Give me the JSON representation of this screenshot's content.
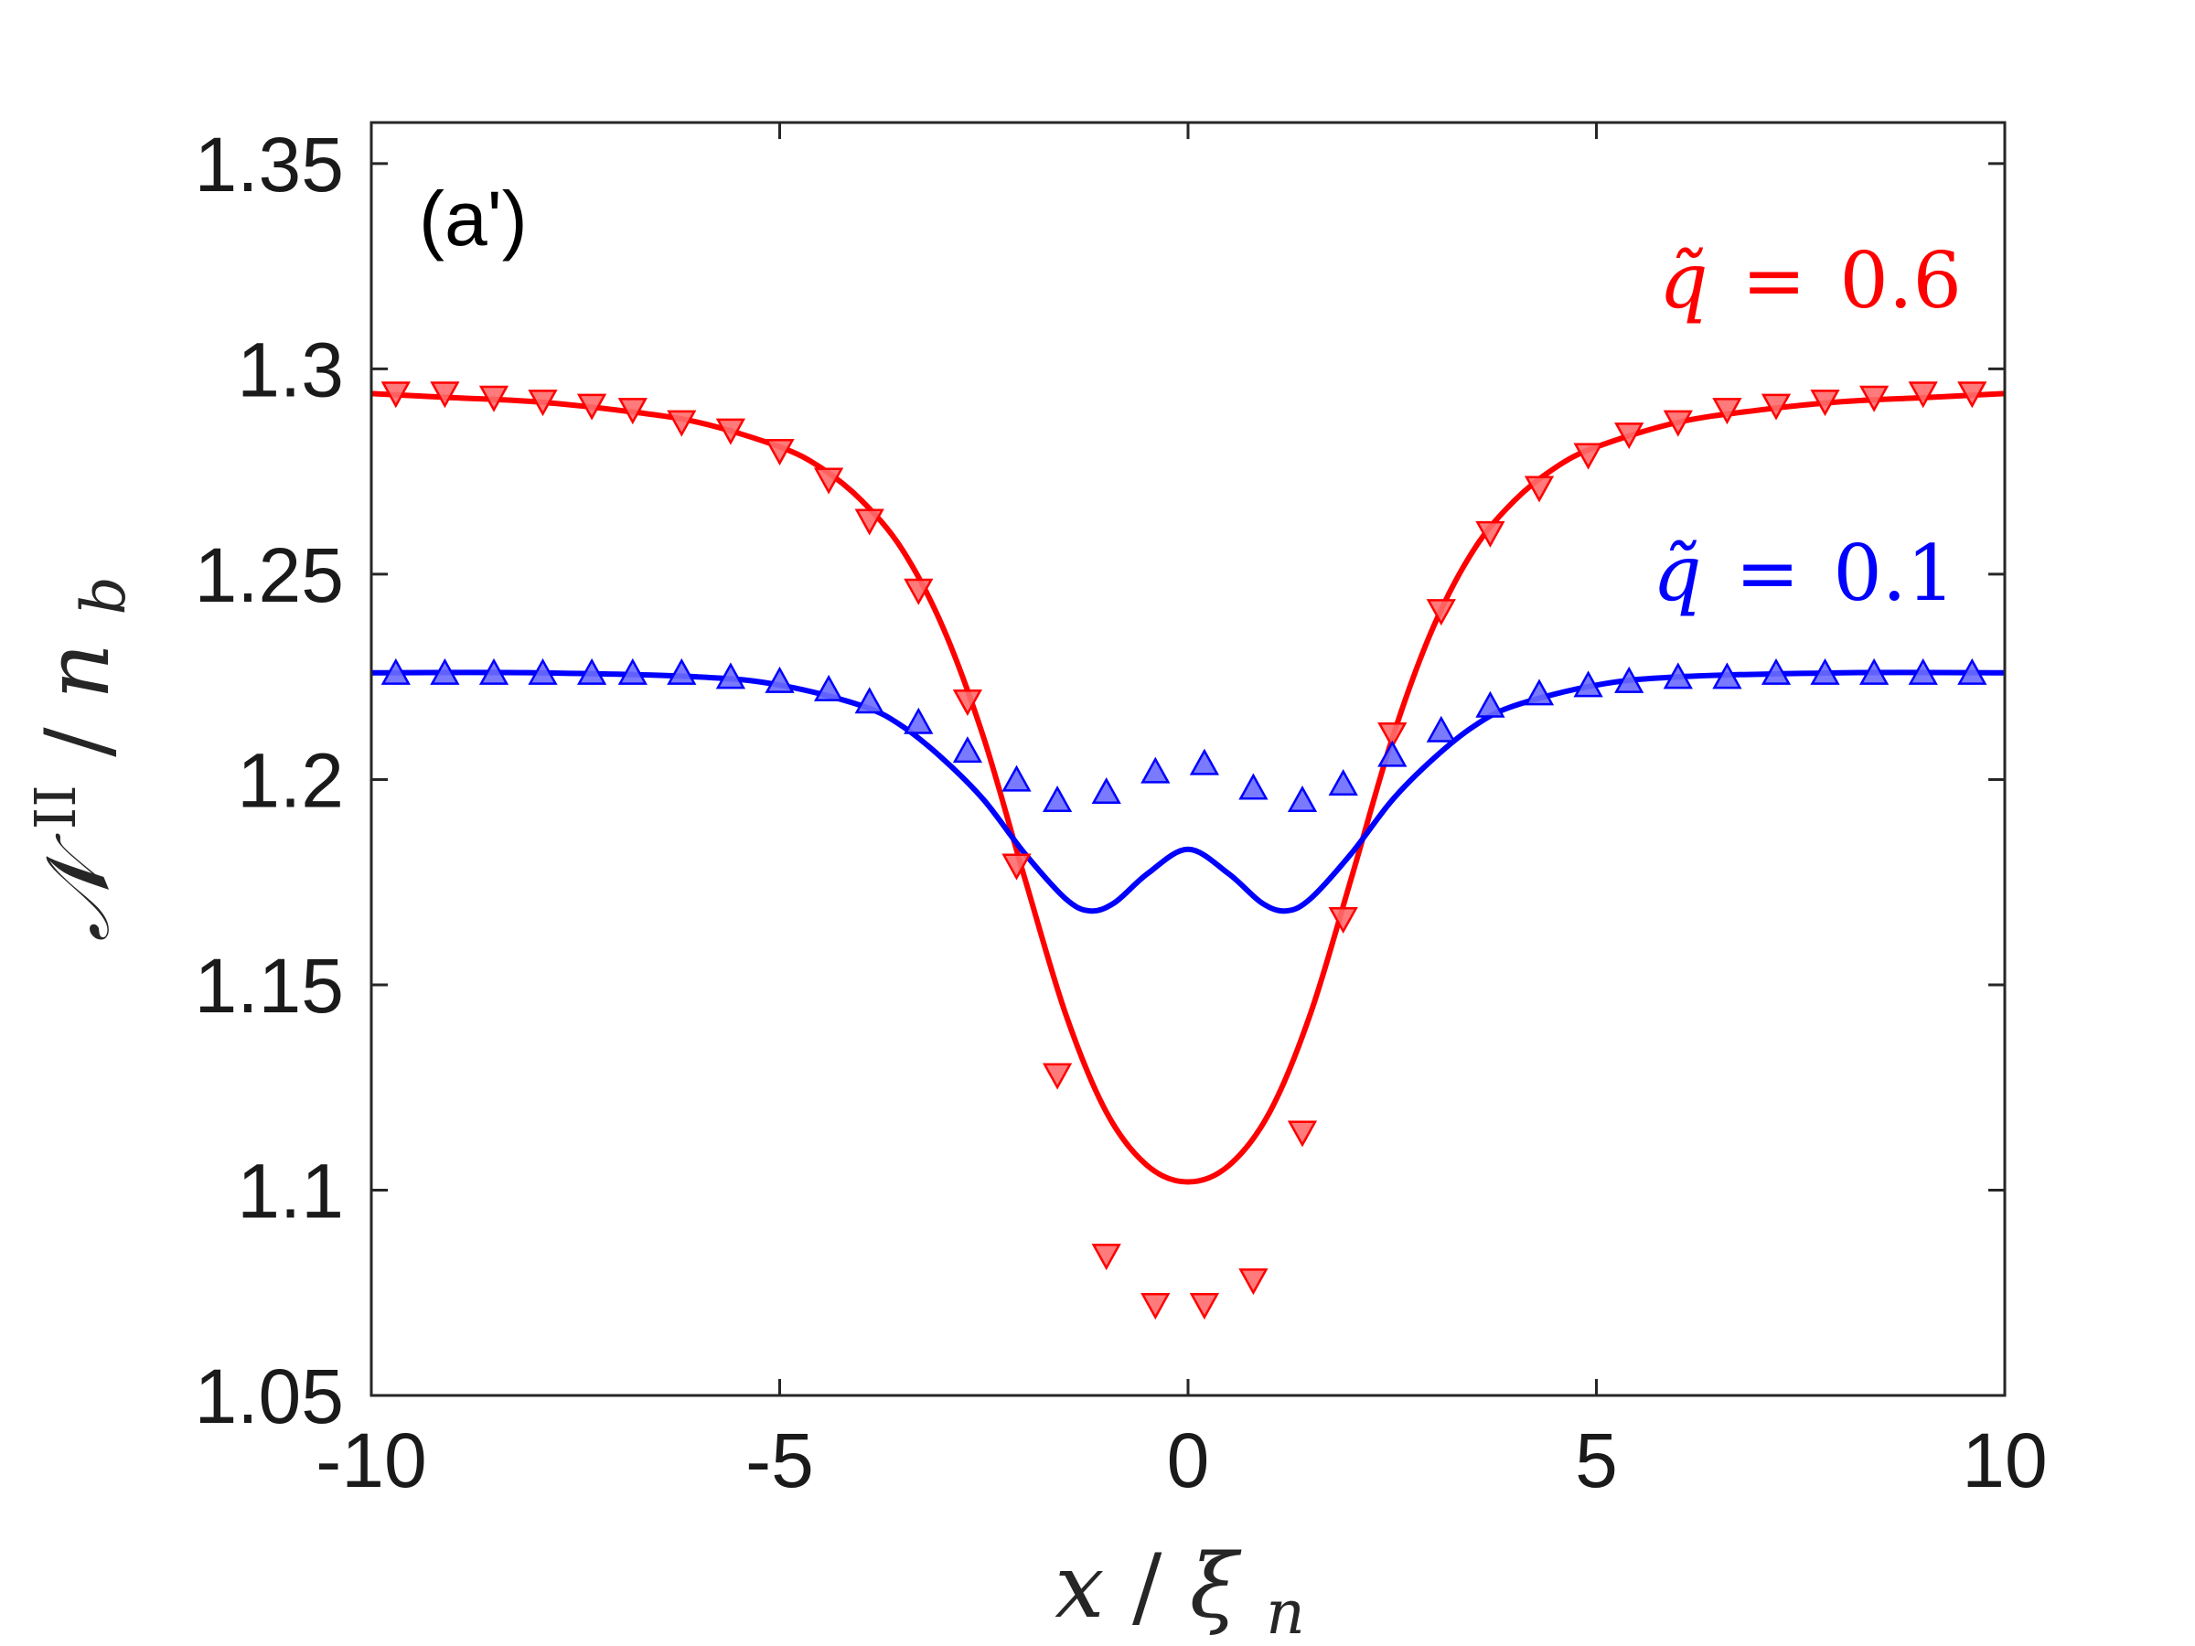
{
  "chart_data": {
    "type": "line",
    "panel_label": "(a')",
    "xlabel": {
      "main": "x",
      "sep": "/",
      "var": "ξ",
      "sub": "n"
    },
    "ylabel": {
      "main": "𝒩",
      "sup": "II",
      "sep": "/",
      "var": "n",
      "sub": "b"
    },
    "xlim": [
      -10,
      10
    ],
    "ylim": [
      1.05,
      1.36
    ],
    "xticks": [
      -10,
      -5,
      0,
      5,
      10
    ],
    "xtick_labels": [
      "-10",
      "-5",
      "0",
      "5",
      "10"
    ],
    "yticks": [
      1.05,
      1.1,
      1.15,
      1.2,
      1.25,
      1.3,
      1.35
    ],
    "ytick_labels": [
      "1.05",
      "1.1",
      "1.15",
      "1.2",
      "1.25",
      "1.3",
      "1.35"
    ],
    "series": [
      {
        "name": "q̃ = 0.6",
        "label_var": "q̃",
        "label_eq": "=",
        "label_val": "0.6",
        "color": "#ff0000",
        "marker": "triangle-down",
        "curve": {
          "x": [
            -10,
            -9,
            -8,
            -7,
            -6,
            -5,
            -4.5,
            -4,
            -3.5,
            -3,
            -2.5,
            -2,
            -1.5,
            -1,
            -0.5,
            0,
            0.5,
            1,
            1.5,
            2,
            2.5,
            3,
            3.5,
            4,
            4.5,
            5,
            6,
            7,
            8,
            9,
            10
          ],
          "y": [
            1.294,
            1.293,
            1.292,
            1.29,
            1.287,
            1.281,
            1.276,
            1.268,
            1.256,
            1.237,
            1.21,
            1.176,
            1.143,
            1.119,
            1.106,
            1.102,
            1.106,
            1.119,
            1.143,
            1.176,
            1.21,
            1.237,
            1.256,
            1.268,
            1.276,
            1.281,
            1.287,
            1.29,
            1.292,
            1.293,
            1.294
          ]
        },
        "points": {
          "x": [
            -9.7,
            -9.1,
            -8.5,
            -7.9,
            -7.3,
            -6.8,
            -6.2,
            -5.6,
            -5.0,
            -4.4,
            -3.9,
            -3.3,
            -2.7,
            -2.1,
            -1.6,
            -1.0,
            -0.4,
            0.2,
            0.8,
            1.4,
            1.9,
            2.5,
            3.1,
            3.7,
            4.3,
            4.9,
            5.4,
            6.0,
            6.6,
            7.2,
            7.8,
            8.4,
            9.0,
            9.6
          ],
          "y": [
            1.294,
            1.294,
            1.293,
            1.292,
            1.291,
            1.29,
            1.287,
            1.285,
            1.28,
            1.273,
            1.263,
            1.246,
            1.219,
            1.179,
            1.128,
            1.084,
            1.072,
            1.072,
            1.078,
            1.114,
            1.166,
            1.211,
            1.241,
            1.26,
            1.271,
            1.279,
            1.284,
            1.287,
            1.29,
            1.291,
            1.292,
            1.293,
            1.294,
            1.294
          ]
        }
      },
      {
        "name": "q̃ = 0.1",
        "label_var": "q̃",
        "label_eq": "=",
        "label_val": "0.1",
        "color": "#0000ff",
        "marker": "triangle-up",
        "curve": {
          "x": [
            -10,
            -8,
            -6,
            -5,
            -4,
            -3.5,
            -3,
            -2.5,
            -2,
            -1.5,
            -1.2,
            -0.9,
            -0.5,
            0,
            0.5,
            0.9,
            1.2,
            1.5,
            2,
            2.5,
            3,
            3.5,
            4,
            5,
            6,
            8,
            10
          ],
          "y": [
            1.226,
            1.226,
            1.225,
            1.223,
            1.218,
            1.213,
            1.205,
            1.195,
            1.182,
            1.171,
            1.168,
            1.17,
            1.177,
            1.183,
            1.177,
            1.17,
            1.168,
            1.171,
            1.182,
            1.195,
            1.205,
            1.213,
            1.218,
            1.223,
            1.225,
            1.226,
            1.226
          ]
        },
        "points": {
          "x": [
            -9.7,
            -9.1,
            -8.5,
            -7.9,
            -7.3,
            -6.8,
            -6.2,
            -5.6,
            -5.0,
            -4.4,
            -3.9,
            -3.3,
            -2.7,
            -2.1,
            -1.6,
            -1.0,
            -0.4,
            0.2,
            0.8,
            1.4,
            1.9,
            2.5,
            3.1,
            3.7,
            4.3,
            4.9,
            5.4,
            6.0,
            6.6,
            7.2,
            7.8,
            8.4,
            9.0,
            9.6
          ],
          "y": [
            1.226,
            1.226,
            1.226,
            1.226,
            1.226,
            1.226,
            1.226,
            1.225,
            1.224,
            1.222,
            1.219,
            1.214,
            1.207,
            1.2,
            1.195,
            1.197,
            1.202,
            1.204,
            1.198,
            1.195,
            1.199,
            1.206,
            1.212,
            1.218,
            1.221,
            1.223,
            1.224,
            1.225,
            1.225,
            1.226,
            1.226,
            1.226,
            1.226,
            1.226
          ]
        }
      }
    ]
  }
}
